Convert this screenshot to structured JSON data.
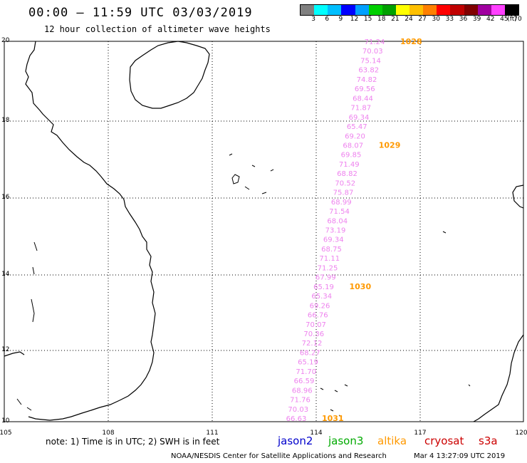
{
  "header": {
    "title": "00:00 – 11:59 UTC 03/03/2019",
    "subtitle": "12 hour collection of altimeter wave heights"
  },
  "legend": {
    "colors": [
      "#808080",
      "#00ffff",
      "#00bfff",
      "#0000ff",
      "#00a0ff",
      "#00d000",
      "#00a000",
      "#ffff00",
      "#ffc000",
      "#ff8000",
      "#ff0000",
      "#c00000",
      "#800000",
      "#a000a0",
      "#ff40ff",
      "#000000"
    ],
    "labels": [
      "3",
      "6",
      "9",
      "12",
      "15",
      "18",
      "21",
      "24",
      "27",
      "30",
      "33",
      "36",
      "39",
      "42",
      "45",
      "70",
      "(ft)"
    ]
  },
  "axes": {
    "lat_labels": [
      "20",
      "18",
      "16",
      "14",
      "12",
      "10"
    ],
    "lon_labels": [
      "105",
      "108",
      "111",
      "114",
      "117",
      "120"
    ]
  },
  "observations": {
    "color": "#ee82ee",
    "label_color": "#ff9900",
    "values": [
      "71.24",
      "70.03",
      "75.14",
      "63.82",
      "74.82",
      "69.56",
      "68.44",
      "71.87",
      "69.34",
      "65.47",
      "69.20",
      "68.07",
      "69.85",
      "71.49",
      "68.82",
      "70.52",
      "75.87",
      "68.99",
      "71.54",
      "68.04",
      "73.19",
      "69.34",
      "68.75",
      "71.11",
      "71.25",
      "67.99",
      "65.19",
      "65.34",
      "69.26",
      "66.76",
      "70.07",
      "70.36",
      "72.12",
      "68.27",
      "65.19",
      "71.70",
      "66.59",
      "68.96",
      "71.76",
      "70.03",
      "66.63"
    ],
    "pass_labels": [
      "1028",
      "1029",
      "1030",
      "1031"
    ]
  },
  "footer": {
    "note": "note: 1) Time is in UTC; 2) SWH is in feet",
    "satellites": [
      {
        "name": "jason2",
        "color": "#0000cc"
      },
      {
        "name": "jason3",
        "color": "#00aa00"
      },
      {
        "name": "altika",
        "color": "#ff9900"
      },
      {
        "name": "cryosat",
        "color": "#cc0000"
      },
      {
        "name": "s3a",
        "color": "#cc0000"
      }
    ],
    "credit": "NOAA/NESDIS Center for Satellite Applications and Research",
    "credit_date": "Mar  4 13:27:09 UTC 2019"
  }
}
